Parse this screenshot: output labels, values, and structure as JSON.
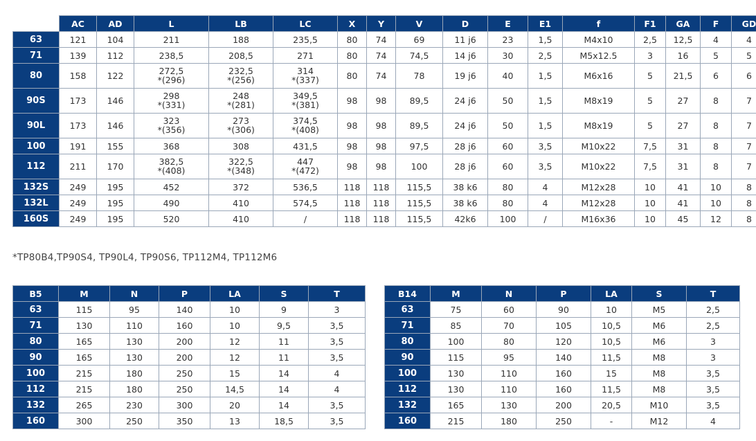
{
  "main_table": {
    "columns": [
      "AC",
      "AD",
      "L",
      "LB",
      "LC",
      "X",
      "Y",
      "V",
      "D",
      "E",
      "E1",
      "f",
      "F1",
      "GA",
      "F",
      "GD"
    ],
    "rows": [
      {
        "size": "63",
        "cells": [
          "121",
          "104",
          "211",
          "188",
          "235,5",
          "80",
          "74",
          "69",
          "11 j6",
          "23",
          "1,5",
          "M4x10",
          "2,5",
          "12,5",
          "4",
          "4"
        ]
      },
      {
        "size": "71",
        "cells": [
          "139",
          "112",
          "238,5",
          "208,5",
          "271",
          "80",
          "74",
          "74,5",
          "14 j6",
          "30",
          "2,5",
          "M5x12.5",
          "3",
          "16",
          "5",
          "5"
        ]
      },
      {
        "size": "80",
        "cells": [
          "158",
          "122",
          "272,5\n*(296)",
          "232,5\n*(256)",
          "314\n*(337)",
          "80",
          "74",
          "78",
          "19 j6",
          "40",
          "1,5",
          "M6x16",
          "5",
          "21,5",
          "6",
          "6"
        ]
      },
      {
        "size": "90S",
        "cells": [
          "173",
          "146",
          "298\n*(331)",
          "248\n*(281)",
          "349,5\n*(381)",
          "98",
          "98",
          "89,5",
          "24 j6",
          "50",
          "1,5",
          "M8x19",
          "5",
          "27",
          "8",
          "7"
        ]
      },
      {
        "size": "90L",
        "cells": [
          "173",
          "146",
          "323\n*(356)",
          "273\n*(306)",
          "374,5\n*(408)",
          "98",
          "98",
          "89,5",
          "24 j6",
          "50",
          "1,5",
          "M8x19",
          "5",
          "27",
          "8",
          "7"
        ]
      },
      {
        "size": "100",
        "cells": [
          "191",
          "155",
          "368",
          "308",
          "431,5",
          "98",
          "98",
          "97,5",
          "28 j6",
          "60",
          "3,5",
          "M10x22",
          "7,5",
          "31",
          "8",
          "7"
        ]
      },
      {
        "size": "112",
        "cells": [
          "211",
          "170",
          "382,5\n*(408)",
          "322,5\n*(348)",
          "447\n*(472)",
          "98",
          "98",
          "100",
          "28 j6",
          "60",
          "3,5",
          "M10x22",
          "7,5",
          "31",
          "8",
          "7"
        ]
      },
      {
        "size": "132S",
        "cells": [
          "249",
          "195",
          "452",
          "372",
          "536,5",
          "118",
          "118",
          "115,5",
          "38 k6",
          "80",
          "4",
          "M12x28",
          "10",
          "41",
          "10",
          "8"
        ]
      },
      {
        "size": "132L",
        "cells": [
          "249",
          "195",
          "490",
          "410",
          "574,5",
          "118",
          "118",
          "115,5",
          "38 k6",
          "80",
          "4",
          "M12x28",
          "10",
          "41",
          "10",
          "8"
        ]
      },
      {
        "size": "160S",
        "cells": [
          "249",
          "195",
          "520",
          "410",
          "/",
          "118",
          "118",
          "115,5",
          "42k6",
          "100",
          "/",
          "M16x36",
          "10",
          "45",
          "12",
          "8"
        ]
      }
    ]
  },
  "footnote": "*TP80B4,TP90S4, TP90L4, TP90S6, TP112M4, TP112M6",
  "b5_table": {
    "corner": "B5",
    "columns": [
      "M",
      "N",
      "P",
      "LA",
      "S",
      "T"
    ],
    "rows": [
      {
        "size": "63",
        "cells": [
          "115",
          "95",
          "140",
          "10",
          "9",
          "3"
        ]
      },
      {
        "size": "71",
        "cells": [
          "130",
          "110",
          "160",
          "10",
          "9,5",
          "3,5"
        ]
      },
      {
        "size": "80",
        "cells": [
          "165",
          "130",
          "200",
          "12",
          "11",
          "3,5"
        ]
      },
      {
        "size": "90",
        "cells": [
          "165",
          "130",
          "200",
          "12",
          "11",
          "3,5"
        ]
      },
      {
        "size": "100",
        "cells": [
          "215",
          "180",
          "250",
          "15",
          "14",
          "4"
        ]
      },
      {
        "size": "112",
        "cells": [
          "215",
          "180",
          "250",
          "14,5",
          "14",
          "4"
        ]
      },
      {
        "size": "132",
        "cells": [
          "265",
          "230",
          "300",
          "20",
          "14",
          "3,5"
        ]
      },
      {
        "size": "160",
        "cells": [
          "300",
          "250",
          "350",
          "13",
          "18,5",
          "3,5"
        ]
      }
    ]
  },
  "b14_table": {
    "corner": "B14",
    "columns": [
      "M",
      "N",
      "P",
      "LA",
      "S",
      "T"
    ],
    "rows": [
      {
        "size": "63",
        "cells": [
          "75",
          "60",
          "90",
          "10",
          "M5",
          "2,5"
        ]
      },
      {
        "size": "71",
        "cells": [
          "85",
          "70",
          "105",
          "10,5",
          "M6",
          "2,5"
        ]
      },
      {
        "size": "80",
        "cells": [
          "100",
          "80",
          "120",
          "10,5",
          "M6",
          "3"
        ]
      },
      {
        "size": "90",
        "cells": [
          "115",
          "95",
          "140",
          "11,5",
          "M8",
          "3"
        ]
      },
      {
        "size": "100",
        "cells": [
          "130",
          "110",
          "160",
          "15",
          "M8",
          "3,5"
        ]
      },
      {
        "size": "112",
        "cells": [
          "130",
          "110",
          "160",
          "11,5",
          "M8",
          "3,5"
        ]
      },
      {
        "size": "132",
        "cells": [
          "165",
          "130",
          "200",
          "20,5",
          "M10",
          "3,5"
        ]
      },
      {
        "size": "160",
        "cells": [
          "215",
          "180",
          "250",
          "-",
          "M12",
          "4"
        ]
      }
    ]
  },
  "colors": {
    "header_bg": "#0a3d7e",
    "header_text": "#ffffff",
    "grid": "#9aa7b8",
    "body_text": "#333333"
  }
}
